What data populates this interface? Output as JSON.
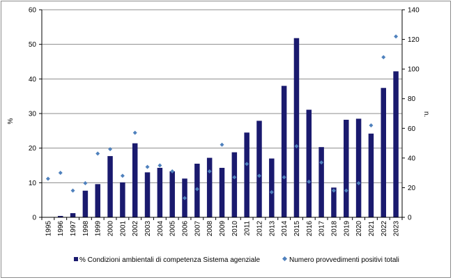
{
  "chart_data": {
    "type": "bar",
    "categories": [
      "1995",
      "1996",
      "1997",
      "1998",
      "1999",
      "2000",
      "2001",
      "2002",
      "2003",
      "2004",
      "2005",
      "2006",
      "2007",
      "2008",
      "2009",
      "2010",
      "2011",
      "2012",
      "2013",
      "2014",
      "2015",
      "2016",
      "2017",
      "2018",
      "2019",
      "2020",
      "2021",
      "2022",
      "2023"
    ],
    "series": [
      {
        "name": "% Condizioni ambientali di competenza Sistema agenziale",
        "type": "bar",
        "axis": "left",
        "color": "#1a1a6e",
        "values": [
          0.1,
          0.4,
          1.2,
          7.7,
          9.6,
          17.7,
          10.1,
          21.4,
          13.0,
          14.3,
          13.3,
          11.2,
          15.5,
          17.2,
          14.3,
          18.8,
          24.5,
          27.9,
          17.0,
          38.0,
          51.8,
          31.1,
          20.3,
          8.6,
          28.2,
          28.5,
          24.2,
          37.4,
          42.2
        ]
      },
      {
        "name": "Numero provvedimenti positivi totali",
        "type": "scatter",
        "axis": "right",
        "color": "#4f81bd",
        "values": [
          26,
          30,
          18,
          23,
          43,
          46,
          28,
          57,
          34,
          35,
          31,
          13,
          19,
          31,
          49,
          27,
          36,
          28,
          17,
          27,
          48,
          24,
          37,
          18,
          18,
          23,
          62,
          108,
          122
        ]
      }
    ],
    "ylabel": "%",
    "ylim": [
      0,
      60
    ],
    "yticks": [
      "0",
      "10",
      "20",
      "30",
      "40",
      "50",
      "60"
    ],
    "y2label": "n.",
    "y2lim": [
      0,
      140
    ],
    "y2ticks": [
      "0",
      "20",
      "40",
      "60",
      "80",
      "100",
      "120",
      "140"
    ],
    "xlabel": "",
    "grid": "horizontal",
    "legend": "bottom"
  }
}
